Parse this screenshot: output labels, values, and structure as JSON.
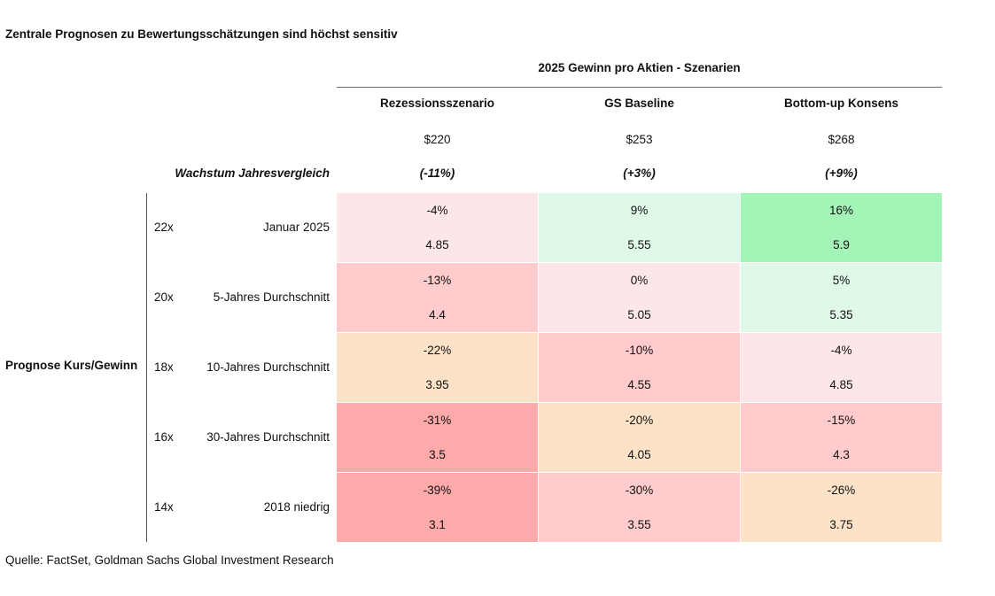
{
  "chart_data": {
    "type": "table",
    "title": "Zentrale Prognosen zu Bewertungsschätzungen sind höchst sensitiv",
    "column_group_title": "2025 Gewinn pro Aktien - Szenarien",
    "growth_label": "Wachstum Jahresvergleich",
    "row_group_label": "Prognose Kurs/Gewinn",
    "columns": [
      {
        "name": "Rezessionsszenario",
        "eps": "$220",
        "growth": "(-11%)"
      },
      {
        "name": "GS Baseline",
        "eps": "$253",
        "growth": "(+3%)"
      },
      {
        "name": "Bottom-up Konsens",
        "eps": "$268",
        "growth": "(+9%)"
      }
    ],
    "rows": [
      {
        "pe": "22x",
        "label": "Januar 2025",
        "cells": [
          {
            "pct": "-4%",
            "value": "4.85",
            "color": "#fde6e7"
          },
          {
            "pct": "9%",
            "value": "5.55",
            "color": "#dff8e7"
          },
          {
            "pct": "16%",
            "value": "5.9",
            "color": "#a3f4b6"
          }
        ]
      },
      {
        "pe": "20x",
        "label": "5-Jahres Durchschnitt",
        "cells": [
          {
            "pct": "-13%",
            "value": "4.4",
            "color": "#ffcbcd"
          },
          {
            "pct": "0%",
            "value": "5.05",
            "color": "#fde6e7"
          },
          {
            "pct": "5%",
            "value": "5.35",
            "color": "#dff8e7"
          }
        ]
      },
      {
        "pe": "18x",
        "label": "10-Jahres Durchschnitt",
        "cells": [
          {
            "pct": "-22%",
            "value": "3.95",
            "color": "#fce3c8"
          },
          {
            "pct": "-10%",
            "value": "4.55",
            "color": "#ffcbcd"
          },
          {
            "pct": "-4%",
            "value": "4.85",
            "color": "#fde6e7"
          }
        ]
      },
      {
        "pe": "16x",
        "label": "30-Jahres Durchschnitt",
        "cells": [
          {
            "pct": "-31%",
            "value": "3.5",
            "color": "#fea9aa"
          },
          {
            "pct": "-20%",
            "value": "4.05",
            "color": "#fce3c8"
          },
          {
            "pct": "-15%",
            "value": "4.3",
            "color": "#ffcbcd"
          }
        ]
      },
      {
        "pe": "14x",
        "label": "2018 niedrig",
        "cells": [
          {
            "pct": "-39%",
            "value": "3.1",
            "color": "#fea9aa"
          },
          {
            "pct": "-30%",
            "value": "3.55",
            "color": "#ffcbcd"
          },
          {
            "pct": "-26%",
            "value": "3.75",
            "color": "#fce3c8"
          }
        ]
      }
    ]
  },
  "source": "Quelle: FactSet, Goldman Sachs Global Investment Research"
}
